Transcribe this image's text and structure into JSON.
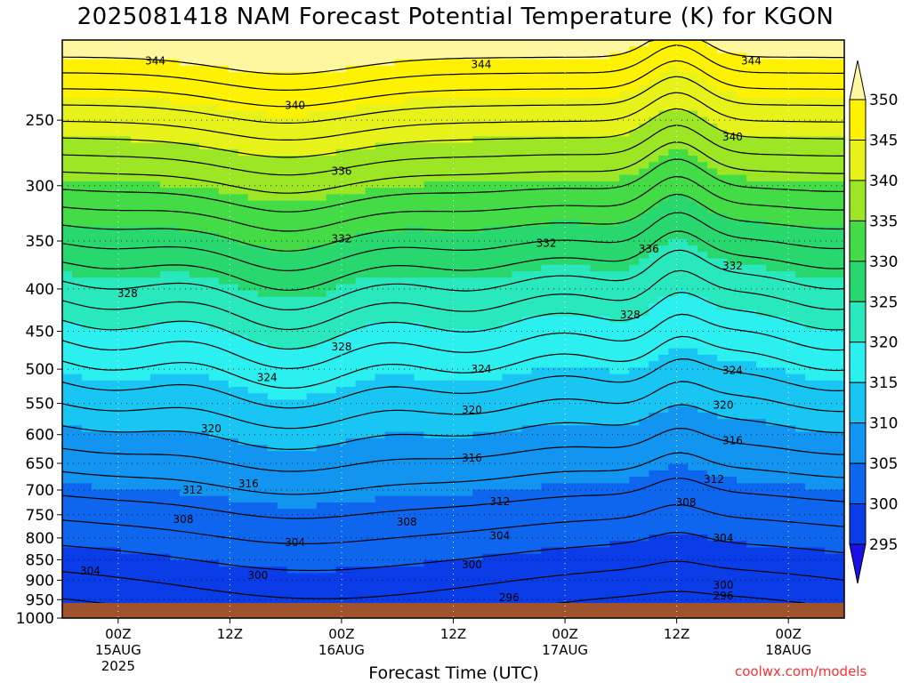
{
  "title": "2025081418 NAM Forecast Potential Temperature (K) for KGON",
  "xlabel": "Forecast Time (UTC)",
  "credit": "coolwx.com/models",
  "chart_data": {
    "type": "heatmap",
    "title": "2025081418 NAM Forecast Potential Temperature (K) for KGON",
    "xlabel": "Forecast Time (UTC)",
    "ylabel": "",
    "y_scale": "log-pressure (inverted)",
    "ylim": [
      1000,
      200
    ],
    "y_ticks": [
      1000,
      950,
      900,
      850,
      800,
      750,
      700,
      650,
      600,
      550,
      500,
      450,
      400,
      350,
      300,
      250
    ],
    "x_ticks": [
      {
        "hour": 6,
        "label": "00Z",
        "sub1": "15AUG",
        "sub2": "2025"
      },
      {
        "hour": 18,
        "label": "12Z",
        "sub1": "",
        "sub2": ""
      },
      {
        "hour": 30,
        "label": "00Z",
        "sub1": "16AUG",
        "sub2": ""
      },
      {
        "hour": 42,
        "label": "12Z",
        "sub1": "",
        "sub2": ""
      },
      {
        "hour": 54,
        "label": "00Z",
        "sub1": "17AUG",
        "sub2": ""
      },
      {
        "hour": 66,
        "label": "12Z",
        "sub1": "",
        "sub2": ""
      },
      {
        "hour": 78,
        "label": "00Z",
        "sub1": "18AUG",
        "sub2": ""
      }
    ],
    "xlim_hours": [
      0,
      84
    ],
    "grid": true,
    "colorbar": {
      "levels": [
        295,
        300,
        305,
        310,
        315,
        320,
        325,
        330,
        335,
        340,
        345,
        350
      ],
      "colors": [
        "#1a10e6",
        "#0a3ce8",
        "#0e66ee",
        "#1295f0",
        "#19c6f3",
        "#2cefef",
        "#2ae8bd",
        "#28d86f",
        "#44dc46",
        "#9ce626",
        "#e6f21a",
        "#fff200",
        "#fff7a0"
      ]
    },
    "contour_labels": [
      {
        "value": 344,
        "hour": 10,
        "p": 212
      },
      {
        "value": 344,
        "hour": 45,
        "p": 214
      },
      {
        "value": 344,
        "hour": 74,
        "p": 212
      },
      {
        "value": 340,
        "hour": 25,
        "p": 240
      },
      {
        "value": 340,
        "hour": 72,
        "p": 262
      },
      {
        "value": 336,
        "hour": 30,
        "p": 288
      },
      {
        "value": 336,
        "hour": 63,
        "p": 358
      },
      {
        "value": 332,
        "hour": 30,
        "p": 348
      },
      {
        "value": 332,
        "hour": 52,
        "p": 352
      },
      {
        "value": 332,
        "hour": 72,
        "p": 375
      },
      {
        "value": 328,
        "hour": 7,
        "p": 405
      },
      {
        "value": 328,
        "hour": 30,
        "p": 470
      },
      {
        "value": 328,
        "hour": 61,
        "p": 430
      },
      {
        "value": 324,
        "hour": 22,
        "p": 512
      },
      {
        "value": 324,
        "hour": 45,
        "p": 500
      },
      {
        "value": 324,
        "hour": 72,
        "p": 502
      },
      {
        "value": 320,
        "hour": 16,
        "p": 590
      },
      {
        "value": 320,
        "hour": 44,
        "p": 560
      },
      {
        "value": 320,
        "hour": 71,
        "p": 553
      },
      {
        "value": 316,
        "hour": 20,
        "p": 688
      },
      {
        "value": 316,
        "hour": 44,
        "p": 640
      },
      {
        "value": 316,
        "hour": 72,
        "p": 610
      },
      {
        "value": 312,
        "hour": 14,
        "p": 700
      },
      {
        "value": 312,
        "hour": 47,
        "p": 723
      },
      {
        "value": 312,
        "hour": 70,
        "p": 680
      },
      {
        "value": 308,
        "hour": 13,
        "p": 760
      },
      {
        "value": 308,
        "hour": 37,
        "p": 765
      },
      {
        "value": 308,
        "hour": 67,
        "p": 725
      },
      {
        "value": 304,
        "hour": 3,
        "p": 877
      },
      {
        "value": 304,
        "hour": 25,
        "p": 810
      },
      {
        "value": 304,
        "hour": 47,
        "p": 795
      },
      {
        "value": 304,
        "hour": 71,
        "p": 800
      },
      {
        "value": 300,
        "hour": 21,
        "p": 888
      },
      {
        "value": 300,
        "hour": 44,
        "p": 862
      },
      {
        "value": 300,
        "hour": 71,
        "p": 912
      },
      {
        "value": 296,
        "hour": 48,
        "p": 945
      },
      {
        "value": 296,
        "hour": 71,
        "p": 940
      }
    ]
  }
}
